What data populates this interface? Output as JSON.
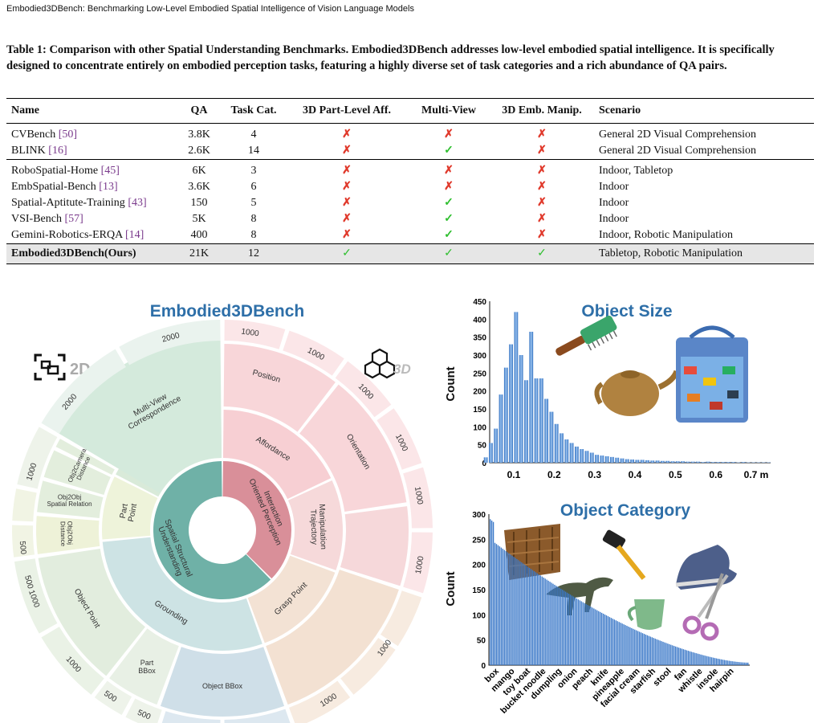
{
  "header": "Embodied3DBench: Benchmarking Low-Level Embodied Spatial Intelligence of Vision Language Models",
  "caption": "Table 1: Comparison with other Spatial Understanding Benchmarks. Embodied3DBench addresses low-level embodied spatial intelligence. It is specifically designed to concentrate entirely on embodied perception tasks, featuring a highly diverse set of task categories and a rich abundance of QA pairs.",
  "table": {
    "headers": [
      "Name",
      "QA",
      "Task Cat.",
      "3D Part-Level Aff.",
      "Multi-View",
      "3D Emb. Manip.",
      "Scenario"
    ],
    "rows": [
      {
        "name": "CVBench",
        "cite": "50",
        "qa": "3.8K",
        "cat": "4",
        "aff": "✗",
        "mv": "✗",
        "manip": "✗",
        "scenario": "General 2D Visual Comprehension"
      },
      {
        "name": "BLINK",
        "cite": "16",
        "qa": "2.6K",
        "cat": "14",
        "aff": "✗",
        "mv": "✓",
        "manip": "✗",
        "scenario": "General 2D Visual Comprehension"
      },
      {
        "name": "RoboSpatial-Home",
        "cite": "45",
        "qa": "6K",
        "cat": "3",
        "aff": "✗",
        "mv": "✗",
        "manip": "✗",
        "scenario": "Indoor, Tabletop"
      },
      {
        "name": "EmbSpatial-Bench",
        "cite": "13",
        "qa": "3.6K",
        "cat": "6",
        "aff": "✗",
        "mv": "✗",
        "manip": "✗",
        "scenario": "Indoor"
      },
      {
        "name": "Spatial-Aptitute-Training",
        "cite": "43",
        "qa": "150",
        "cat": "5",
        "aff": "✗",
        "mv": "✓",
        "manip": "✗",
        "scenario": "Indoor"
      },
      {
        "name": "VSI-Bench",
        "cite": "57",
        "qa": "5K",
        "cat": "8",
        "aff": "✗",
        "mv": "✓",
        "manip": "✗",
        "scenario": "Indoor"
      },
      {
        "name": "Gemini-Robotics-ERQA",
        "cite": "14",
        "qa": "400",
        "cat": "8",
        "aff": "✗",
        "mv": "✓",
        "manip": "✗",
        "scenario": "Indoor, Robotic Manipulation"
      }
    ],
    "ours": {
      "name": "Embodied3DBench(Ours)",
      "qa": "21K",
      "cat": "12",
      "aff": "✓",
      "mv": "✓",
      "manip": "✓",
      "scenario": "Tabletop, Robotic Manipulation"
    }
  },
  "sunburst": {
    "title": "Embodied3DBench",
    "label_2d": "2D",
    "label_3d": "3D",
    "inner": [
      "Spatial Structural Understanding",
      "Interaction Oriented Perception"
    ],
    "middle": [
      "Multi-View Correspondence",
      "Spatial Relation",
      "Part Point",
      "Grounding",
      "Affordance",
      "Manipulation Trajectory",
      "Grasp Point"
    ],
    "outer": [
      "Position",
      "Orientation",
      "Obj2Camera Distance",
      "Obj2Obj Spatial Relation",
      "Obj2Obj Distance",
      "Object Point",
      "Part BBox",
      "Object BBox"
    ],
    "counts": [
      "1000",
      "1000",
      "1000",
      "1000",
      "1000",
      "1000",
      "1000",
      "1000",
      "1000",
      "1000",
      "1000",
      "1000",
      "500",
      "500",
      "500",
      "500",
      "2000",
      "2000"
    ]
  },
  "size_chart": {
    "chart_data": {
      "type": "bar",
      "title": "Object Size",
      "xlabel": "",
      "ylabel": "Count",
      "x_unit": "m",
      "xticks": [
        "0.1",
        "0.2",
        "0.3",
        "0.4",
        "0.5",
        "0.6",
        "0.7 m"
      ],
      "yticks": [
        "0",
        "50",
        "100",
        "150",
        "200",
        "250",
        "300",
        "350",
        "400",
        "450"
      ],
      "ylim": [
        0,
        450
      ],
      "bin_width": 0.0125,
      "bin_start": 0.025,
      "values": [
        15,
        55,
        95,
        190,
        265,
        330,
        420,
        300,
        230,
        365,
        235,
        235,
        178,
        142,
        108,
        82,
        65,
        55,
        45,
        38,
        33,
        28,
        22,
        20,
        18,
        16,
        14,
        12,
        10,
        9,
        8,
        8,
        7,
        6,
        6,
        5,
        5,
        4,
        4,
        4,
        3,
        3,
        3,
        2,
        3,
        2,
        2,
        2,
        2,
        2,
        1,
        2,
        1,
        1,
        1,
        1,
        1
      ]
    }
  },
  "category_chart": {
    "chart_data": {
      "type": "bar",
      "title": "Object Category",
      "xlabel": "",
      "ylabel": "Count",
      "yticks": [
        "0",
        "50",
        "100",
        "150",
        "200",
        "250",
        "300"
      ],
      "ylim": [
        0,
        300
      ],
      "categories_shown": [
        "box",
        "mango",
        "toy boat",
        "bucket noodle",
        "dumpling",
        "onion",
        "peach",
        "knife",
        "pineapple",
        "facial cream",
        "starfish",
        "stool",
        "fan",
        "whistle",
        "insole",
        "hairpin"
      ],
      "n_bars": 165,
      "value_max": 290,
      "value_min": 5
    }
  }
}
